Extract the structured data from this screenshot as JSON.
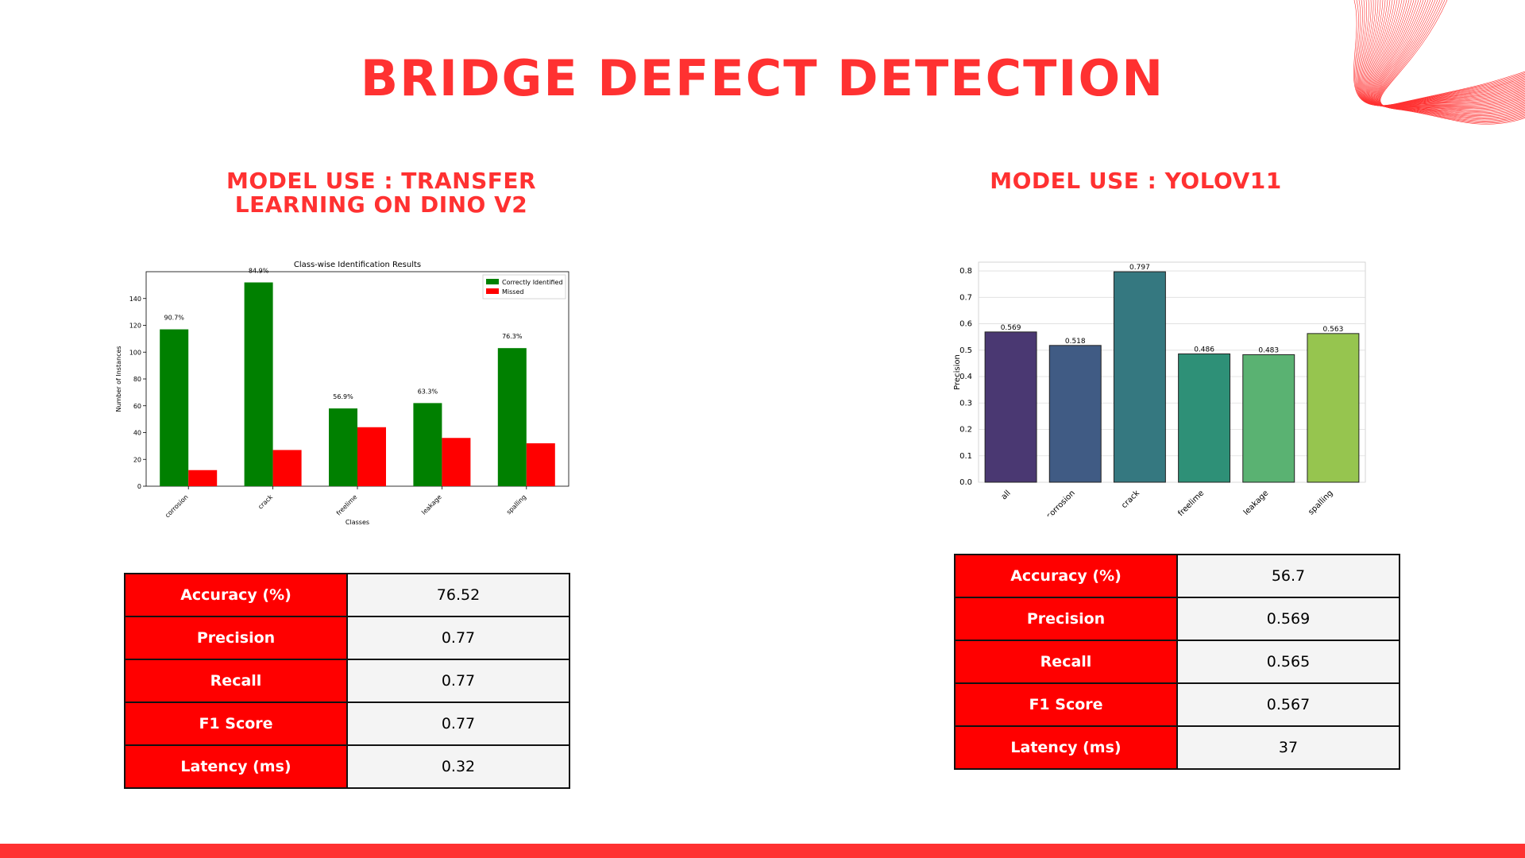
{
  "page": {
    "title": "BRIDGE DEFECT DETECTION",
    "left_heading": "MODEL USE : TRANSFER\nLEARNING ON DINO V2",
    "right_heading": "MODEL USE : YOLOV11",
    "accent_color": "#ff3131"
  },
  "left_table": [
    {
      "key": "Accuracy (%)",
      "value": "76.52"
    },
    {
      "key": "Precision",
      "value": "0.77"
    },
    {
      "key": "Recall",
      "value": "0.77"
    },
    {
      "key": "F1 Score",
      "value": "0.77"
    },
    {
      "key": "Latency (ms)",
      "value": "0.32"
    }
  ],
  "right_table": [
    {
      "key": "Accuracy (%)",
      "value": "56.7"
    },
    {
      "key": "Precision",
      "value": "0.569"
    },
    {
      "key": "Recall",
      "value": "0.565"
    },
    {
      "key": "F1 Score",
      "value": "0.567"
    },
    {
      "key": "Latency (ms)",
      "value": "37"
    }
  ],
  "chart_data": [
    {
      "type": "bar",
      "title": "Class-wise Identification Results",
      "xlabel": "Classes",
      "ylabel": "Number of Instances",
      "ylim": [
        0,
        160
      ],
      "yticks": [
        0,
        20,
        40,
        60,
        80,
        100,
        120,
        140
      ],
      "categories": [
        "corrosion",
        "crack",
        "freelime",
        "leakage",
        "spalling"
      ],
      "series": [
        {
          "name": "Correctly Identified",
          "color": "#008000",
          "values": [
            117,
            152,
            58,
            62,
            103
          ]
        },
        {
          "name": "Missed",
          "color": "#ff0000",
          "values": [
            12,
            27,
            44,
            36,
            32
          ]
        }
      ],
      "annotations": [
        "90.7%",
        "84.9%",
        "56.9%",
        "63.3%",
        "76.3%"
      ],
      "legend": "top-right",
      "grid": false
    },
    {
      "type": "bar",
      "title": "",
      "xlabel": "",
      "ylabel": "Precision",
      "ylim": [
        0,
        0.8333
      ],
      "yticks": [
        0.0,
        0.1,
        0.2,
        0.3,
        0.4,
        0.5,
        0.6,
        0.7,
        0.8
      ],
      "categories": [
        "all",
        "corrosion",
        "crack",
        "freelime",
        "leakage",
        "spalling"
      ],
      "values": [
        0.569,
        0.518,
        0.797,
        0.486,
        0.483,
        0.563
      ],
      "value_labels": [
        "0.569",
        "0.518",
        "0.797",
        "0.486",
        "0.483",
        "0.563"
      ],
      "colors": [
        "#4a3872",
        "#405b84",
        "#357880",
        "#2e9077",
        "#5ab272",
        "#96c54f"
      ],
      "grid": true
    }
  ]
}
